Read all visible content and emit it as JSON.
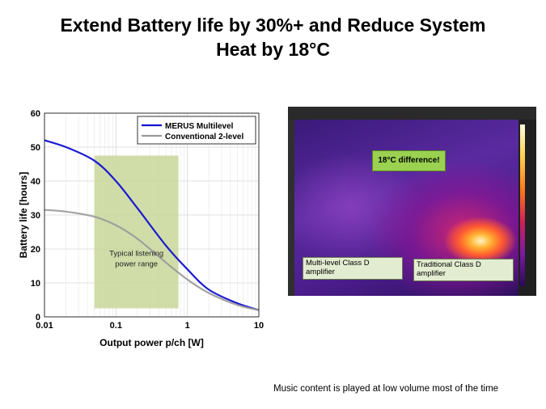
{
  "title_line1": "Extend Battery life by 30%+ and Reduce System",
  "title_line2": "Heat by 18°C",
  "chart_data": {
    "type": "line",
    "xscale": "log",
    "xlabel": "Output power p/ch [W]",
    "ylabel": "Battery life [hours]",
    "xlim": [
      0.01,
      10
    ],
    "ylim": [
      0,
      60
    ],
    "xticks": [
      "0.01",
      "0.1",
      "1",
      "10"
    ],
    "yticks": [
      "0",
      "10",
      "20",
      "30",
      "40",
      "50",
      "60"
    ],
    "grid": true,
    "legend_placement": "top-right",
    "series": [
      {
        "name": "MERUS Multilevel",
        "color": "#1010d0",
        "x": [
          0.01,
          0.02,
          0.05,
          0.1,
          0.2,
          0.5,
          1,
          2,
          5,
          10
        ],
        "y": [
          52,
          50,
          46,
          40,
          32,
          21,
          14,
          8,
          4,
          2
        ]
      },
      {
        "name": "Conventional 2-level",
        "color": "#999999",
        "x": [
          0.01,
          0.02,
          0.05,
          0.1,
          0.2,
          0.5,
          1,
          2,
          5,
          10
        ],
        "y": [
          31.5,
          31,
          29.5,
          27,
          23,
          16,
          11,
          7,
          3.5,
          2
        ]
      }
    ],
    "annotation": {
      "text_line1": "Typical listening",
      "text_line2": "power range",
      "x_range": [
        0.05,
        0.75
      ],
      "y_range": [
        2.5,
        47.5
      ],
      "color": "#c8d79a"
    }
  },
  "thermal": {
    "difference_label": "18°C difference!",
    "left_label": "Multi-level Class D amplifier",
    "right_label": "Traditional Class D amplifier"
  },
  "caption": "Music content is played at low volume  most of the time"
}
